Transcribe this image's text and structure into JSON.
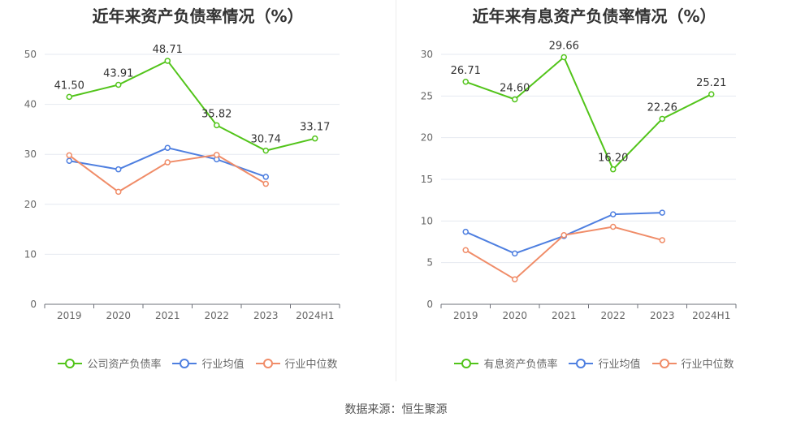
{
  "chart_data": [
    {
      "type": "line",
      "title": "近年来资产负债率情况（%）",
      "categories": [
        "2019",
        "2020",
        "2021",
        "2022",
        "2023",
        "2024H1"
      ],
      "ylim": [
        0,
        50
      ],
      "yticks": [
        0,
        10,
        20,
        30,
        40,
        50
      ],
      "grid": true,
      "legend_position": "bottom",
      "series": [
        {
          "name": "公司资产负债率",
          "color": "#52c41a",
          "values": [
            41.5,
            43.91,
            48.71,
            35.82,
            30.74,
            33.17
          ],
          "labels": [
            "41.50",
            "43.91",
            "48.71",
            "35.82",
            "30.74",
            "33.17"
          ]
        },
        {
          "name": "行业均值",
          "color": "#4e7fe0",
          "values": [
            28.7,
            27.0,
            31.3,
            29.0,
            25.5,
            null
          ]
        },
        {
          "name": "行业中位数",
          "color": "#f08c68",
          "values": [
            29.8,
            22.5,
            28.4,
            29.9,
            24.1,
            null
          ]
        }
      ]
    },
    {
      "type": "line",
      "title": "近年来有息资产负债率情况（%）",
      "categories": [
        "2019",
        "2020",
        "2021",
        "2022",
        "2023",
        "2024H1"
      ],
      "ylim": [
        0,
        30
      ],
      "yticks": [
        0,
        5,
        10,
        15,
        20,
        25,
        30
      ],
      "grid": true,
      "legend_position": "bottom",
      "series": [
        {
          "name": "有息资产负债率",
          "color": "#52c41a",
          "values": [
            26.71,
            24.6,
            29.66,
            16.2,
            22.26,
            25.21
          ],
          "labels": [
            "26.71",
            "24.60",
            "29.66",
            "16.20",
            "22.26",
            "25.21"
          ]
        },
        {
          "name": "行业均值",
          "color": "#4e7fe0",
          "values": [
            8.7,
            6.1,
            8.2,
            10.8,
            11.0,
            null
          ]
        },
        {
          "name": "行业中位数",
          "color": "#f08c68",
          "values": [
            6.5,
            3.0,
            8.3,
            9.3,
            7.7,
            null
          ]
        }
      ]
    }
  ],
  "source": "数据来源：恒生聚源"
}
